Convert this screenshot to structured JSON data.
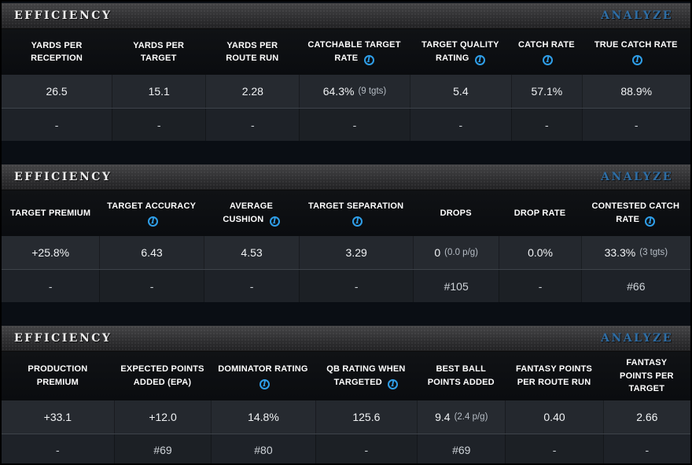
{
  "colors": {
    "analyze_blue": "#2e6da4",
    "info_icon_blue": "#2f9ee8"
  },
  "icons": {
    "info_glyph": "i"
  },
  "tables": [
    {
      "title": "EFFICIENCY",
      "action": "ANALYZE",
      "columns": [
        {
          "label": "YARDS PER RECEPTION",
          "info": false
        },
        {
          "label": "YARDS PER TARGET",
          "info": false
        },
        {
          "label": "YARDS PER ROUTE RUN",
          "info": false
        },
        {
          "label": "CATCHABLE TARGET RATE",
          "info": true
        },
        {
          "label": "TARGET QUALITY RATING",
          "info": true
        },
        {
          "label": "CATCH RATE",
          "info": true
        },
        {
          "label": "TRUE CATCH RATE",
          "info": true
        }
      ],
      "values": [
        {
          "main": "26.5",
          "sub": ""
        },
        {
          "main": "15.1",
          "sub": ""
        },
        {
          "main": "2.28",
          "sub": ""
        },
        {
          "main": "64.3%",
          "sub": "(9 tgts)"
        },
        {
          "main": "5.4",
          "sub": ""
        },
        {
          "main": "57.1%",
          "sub": ""
        },
        {
          "main": "88.9%",
          "sub": ""
        }
      ],
      "ranks": [
        "-",
        "-",
        "-",
        "-",
        "-",
        "-",
        "-"
      ]
    },
    {
      "title": "EFFICIENCY",
      "action": "ANALYZE",
      "columns": [
        {
          "label": "TARGET PREMIUM",
          "info": false
        },
        {
          "label": "TARGET ACCURACY",
          "info": true
        },
        {
          "label": "AVERAGE CUSHION",
          "info": true
        },
        {
          "label": "TARGET SEPARATION",
          "info": true
        },
        {
          "label": "DROPS",
          "info": false
        },
        {
          "label": "DROP RATE",
          "info": false
        },
        {
          "label": "CONTESTED CATCH RATE",
          "info": true
        }
      ],
      "values": [
        {
          "main": "+25.8%",
          "sub": ""
        },
        {
          "main": "6.43",
          "sub": ""
        },
        {
          "main": "4.53",
          "sub": ""
        },
        {
          "main": "3.29",
          "sub": ""
        },
        {
          "main": "0",
          "sub": "(0.0 p/g)"
        },
        {
          "main": "0.0%",
          "sub": ""
        },
        {
          "main": "33.3%",
          "sub": "(3 tgts)"
        }
      ],
      "ranks": [
        "-",
        "-",
        "-",
        "-",
        "#105",
        "-",
        "#66"
      ]
    },
    {
      "title": "EFFICIENCY",
      "action": "ANALYZE",
      "columns": [
        {
          "label": "PRODUCTION PREMIUM",
          "info": false
        },
        {
          "label": "EXPECTED POINTS ADDED (EPA)",
          "info": false
        },
        {
          "label": "DOMINATOR RATING",
          "info": true
        },
        {
          "label": "QB RATING WHEN TARGETED",
          "info": true
        },
        {
          "label": "BEST BALL POINTS ADDED",
          "info": false
        },
        {
          "label": "FANTASY POINTS PER ROUTE RUN",
          "info": false
        },
        {
          "label": "FANTASY POINTS PER TARGET",
          "info": false
        }
      ],
      "values": [
        {
          "main": "+33.1",
          "sub": ""
        },
        {
          "main": "+12.0",
          "sub": ""
        },
        {
          "main": "14.8%",
          "sub": ""
        },
        {
          "main": "125.6",
          "sub": ""
        },
        {
          "main": "9.4",
          "sub": "(2.4 p/g)"
        },
        {
          "main": "0.40",
          "sub": ""
        },
        {
          "main": "2.66",
          "sub": ""
        }
      ],
      "ranks": [
        "-",
        "#69",
        "#80",
        "-",
        "#69",
        "-",
        "-"
      ]
    }
  ]
}
